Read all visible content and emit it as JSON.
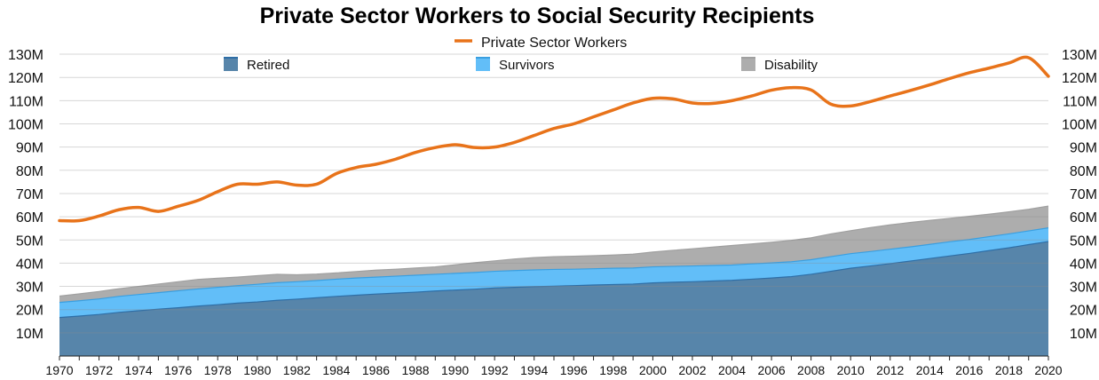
{
  "chart_data": {
    "type": "area",
    "title": "Private Sector Workers to Social Security Recipients",
    "x": [
      1970,
      1971,
      1972,
      1973,
      1974,
      1975,
      1976,
      1977,
      1978,
      1979,
      1980,
      1981,
      1982,
      1983,
      1984,
      1985,
      1986,
      1987,
      1988,
      1989,
      1990,
      1991,
      1992,
      1993,
      1994,
      1995,
      1996,
      1997,
      1998,
      1999,
      2000,
      2001,
      2002,
      2003,
      2004,
      2005,
      2006,
      2007,
      2008,
      2009,
      2010,
      2011,
      2012,
      2013,
      2014,
      2015,
      2016,
      2017,
      2018,
      2019,
      2020
    ],
    "x_tick_labels": [
      "1970",
      "1972",
      "1974",
      "1976",
      "1978",
      "1980",
      "1982",
      "1984",
      "1986",
      "1988",
      "1990",
      "1992",
      "1994",
      "1996",
      "1998",
      "2000",
      "2002",
      "2004",
      "2006",
      "2008",
      "2010",
      "2012",
      "2014",
      "2016",
      "2018",
      "2020"
    ],
    "y_tick_labels": [
      "10M",
      "20M",
      "30M",
      "40M",
      "50M",
      "60M",
      "70M",
      "80M",
      "90M",
      "100M",
      "110M",
      "120M",
      "130M"
    ],
    "ylim": [
      0,
      130000000
    ],
    "units": "millions",
    "grid": true,
    "legend_placement": "top",
    "stacked_series": [
      {
        "name": "Retired",
        "color": "#5785AA",
        "edge_color": "#2E6EA6",
        "values": [
          16.6,
          17.2,
          17.9,
          18.8,
          19.5,
          20.2,
          20.8,
          21.5,
          22.1,
          22.8,
          23.3,
          24.0,
          24.5,
          25.1,
          25.7,
          26.2,
          26.7,
          27.1,
          27.5,
          28.0,
          28.4,
          28.8,
          29.3,
          29.6,
          29.9,
          30.1,
          30.3,
          30.6,
          30.8,
          31.0,
          31.5,
          31.8,
          32.0,
          32.3,
          32.6,
          33.1,
          33.6,
          34.2,
          35.2,
          36.5,
          37.8,
          38.8,
          39.8,
          40.9,
          42.0,
          43.1,
          44.2,
          45.4,
          46.6,
          48.0,
          49.3
        ]
      },
      {
        "name": "Survivors",
        "color": "#62BEF8",
        "edge_color": "#3A9FE0",
        "values": [
          6.5,
          6.6,
          6.7,
          6.9,
          7.0,
          7.1,
          7.3,
          7.4,
          7.5,
          7.5,
          7.6,
          7.6,
          7.5,
          7.4,
          7.4,
          7.4,
          7.3,
          7.3,
          7.3,
          7.2,
          7.2,
          7.2,
          7.2,
          7.2,
          7.2,
          7.2,
          7.1,
          7.0,
          7.0,
          6.9,
          6.9,
          6.8,
          6.8,
          6.7,
          6.6,
          6.6,
          6.5,
          6.4,
          6.3,
          6.3,
          6.3,
          6.2,
          6.2,
          6.1,
          6.1,
          6.1,
          6.0,
          6.0,
          6.0,
          5.9,
          5.9
        ]
      },
      {
        "name": "Disability",
        "color": "#ADADAD",
        "edge_color": "#A0A0A0",
        "values": [
          2.7,
          3.0,
          3.2,
          3.3,
          3.5,
          3.7,
          3.9,
          4.1,
          3.9,
          3.7,
          3.7,
          3.6,
          3.0,
          2.8,
          2.7,
          2.8,
          3.0,
          3.0,
          3.1,
          3.2,
          3.7,
          4.2,
          4.5,
          5.0,
          5.3,
          5.5,
          5.6,
          5.6,
          5.7,
          6.0,
          6.4,
          6.9,
          7.4,
          7.9,
          8.4,
          8.6,
          8.9,
          9.2,
          9.4,
          9.8,
          9.9,
          10.3,
          10.5,
          10.5,
          10.3,
          10.1,
          10.0,
          9.7,
          9.5,
          9.3,
          9.4
        ]
      }
    ],
    "line_series": [
      {
        "name": "Private Sector Workers",
        "color": "#E8731A",
        "values": [
          58.3,
          58.3,
          60.3,
          63.0,
          64.0,
          62.3,
          64.5,
          67.0,
          70.8,
          74.0,
          74.0,
          75.0,
          73.6,
          74.0,
          78.6,
          81.2,
          82.6,
          84.8,
          87.7,
          89.8,
          91.0,
          89.8,
          90.0,
          92.0,
          95.0,
          98.0,
          100.0,
          103.0,
          106.0,
          109.0,
          111.0,
          110.8,
          109.0,
          108.8,
          110.0,
          112.0,
          114.5,
          115.6,
          114.6,
          108.5,
          107.7,
          109.6,
          112.0,
          114.3,
          116.8,
          119.5,
          122.0,
          124.0,
          126.2,
          128.5,
          120.5
        ]
      }
    ]
  }
}
